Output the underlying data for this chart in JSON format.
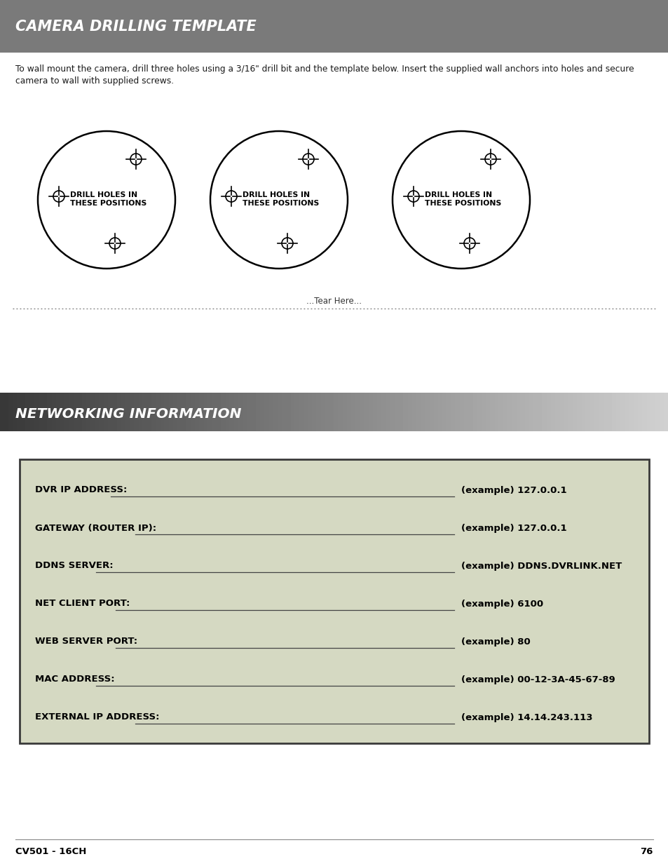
{
  "title1": "CAMERA DRILLING TEMPLATE",
  "title2": "NETWORKING INFORMATION",
  "body_text": "To wall mount the camera, drill three holes using a 3/16\" drill bit and the template below. Insert the supplied wall anchors into holes and secure\ncamera to wall with supplied screws.",
  "drill_label": "DRILL HOLES IN\nTHESE POSITIONS",
  "tear_here": "...Tear Here...",
  "net_fields": [
    {
      "label": "DVR IP ADDRESS:",
      "example": "(example) 127.0.0.1"
    },
    {
      "label": "GATEWAY (ROUTER IP):",
      "example": "(example) 127.0.0.1"
    },
    {
      "label": "DDNS SERVER:",
      "example": "(example) DDNS.DVRLINK.NET"
    },
    {
      "label": "NET CLIENT PORT:",
      "example": "(example) 6100"
    },
    {
      "label": "WEB SERVER PORT:",
      "example": "(example) 80"
    },
    {
      "label": "MAC ADDRESS:",
      "example": "(example) 00-12-3A-45-67-89"
    },
    {
      "label": "EXTERNAL IP ADDRESS:",
      "example": "(example) 14.14.243.113"
    }
  ],
  "header1_color": "#7a7a7a",
  "net_box_color": "#d5d9c2",
  "net_box_border": "#3a3a3a",
  "page_num": "76",
  "model": "CV501 - 16CH",
  "bg_color": "#ffffff",
  "text_color": "#1a1a1a"
}
